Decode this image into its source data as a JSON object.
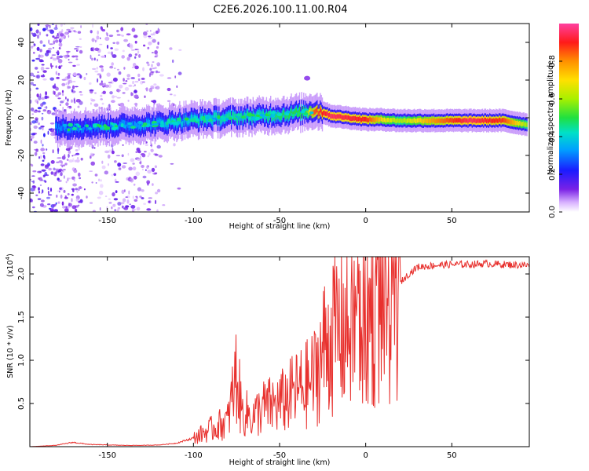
{
  "title": "C2E6.2026.100.11.00.R04",
  "colorbar": {
    "label": "Normalized spectral amplitude",
    "ticks": [
      "0.0",
      "0.2",
      "0.4",
      "0.6",
      "0.8"
    ],
    "tick_values": [
      0.0,
      0.2,
      0.4,
      0.6,
      0.8
    ],
    "range": [
      0,
      1
    ]
  },
  "chart_data": [
    {
      "type": "heatmap",
      "name": "spectrogram",
      "xlabel": "Height of straight line (km)",
      "ylabel": "Frequency (Hz)",
      "xlim": [
        -195,
        95
      ],
      "ylim": [
        -50,
        50
      ],
      "xticks": [
        -150,
        -100,
        -50,
        0,
        50
      ],
      "yticks": [
        -40,
        -20,
        0,
        20,
        40
      ],
      "xtick_labels": [
        "-150",
        "-100",
        "-50",
        "0",
        "50"
      ],
      "ytick_labels": [
        "-40",
        "-20",
        "0",
        "20",
        "40"
      ],
      "ridge": {
        "x": [
          -180,
          -160,
          -140,
          -120,
          -100,
          -80,
          -60,
          -45,
          -35,
          -30,
          -25,
          -20,
          -10,
          0,
          10,
          20,
          40,
          60,
          80,
          93
        ],
        "y": [
          -5,
          -5,
          -4,
          -3,
          -1,
          0,
          1,
          2,
          3,
          4,
          3,
          1,
          0,
          -1,
          -1,
          -1.5,
          -1.5,
          -1.5,
          -1.5,
          -3.5
        ],
        "amplitude": [
          0.32,
          0.3,
          0.32,
          0.35,
          0.4,
          0.45,
          0.45,
          0.5,
          0.5,
          0.85,
          0.9,
          0.95,
          0.92,
          0.9,
          0.7,
          0.6,
          0.8,
          0.95,
          0.88,
          0.6
        ]
      }
    },
    {
      "type": "line",
      "name": "snr",
      "xlabel": "Height of straight line (km)",
      "ylabel": "SNR (10 * v/v)",
      "multiplier_label": "(x10",
      "multiplier_exp": "4",
      "xlim": [
        -195,
        95
      ],
      "ylim": [
        0,
        22000
      ],
      "xticks": [
        -150,
        -100,
        -50,
        0,
        50
      ],
      "yticks": [
        5000,
        10000,
        15000,
        20000
      ],
      "xtick_labels": [
        "-150",
        "-100",
        "-50",
        "0",
        "50"
      ],
      "ytick_labels": [
        "0.5",
        "1.0",
        "1.5",
        "2.0"
      ],
      "color": "#e8312e",
      "x": [
        -195,
        -180,
        -170,
        -160,
        -150,
        -140,
        -130,
        -120,
        -110,
        -100,
        -90,
        -80,
        -75,
        -72,
        -65,
        -60,
        -50,
        -40,
        -35,
        -30,
        -25,
        -20,
        -15,
        -10,
        -5,
        0,
        5,
        10,
        15,
        20,
        25,
        30,
        40,
        50,
        60,
        70,
        80,
        95
      ],
      "values": [
        0,
        150,
        500,
        250,
        200,
        150,
        150,
        200,
        400,
        1000,
        2000,
        3000,
        8500,
        4000,
        3500,
        4500,
        5000,
        6500,
        7000,
        8000,
        11000,
        13000,
        13500,
        14000,
        14500,
        15000,
        16000,
        17500,
        18000,
        19000,
        20000,
        20800,
        21000,
        21100,
        21100,
        21200,
        21100,
        21000
      ]
    }
  ]
}
